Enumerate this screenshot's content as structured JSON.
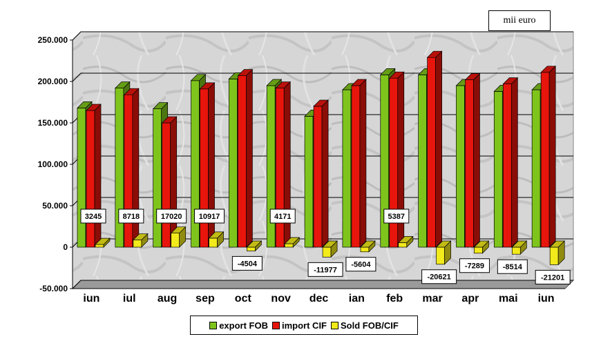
{
  "unit_label": "mii euro",
  "chart_data": {
    "type": "bar",
    "categories": [
      "iun",
      "iul",
      "aug",
      "sep",
      "oct",
      "nov",
      "dec",
      "ian",
      "feb",
      "mar",
      "apr",
      "mai",
      "iun"
    ],
    "series": [
      {
        "name": "export FOB",
        "color": "#7fc41c",
        "values": [
          168000,
          192000,
          167000,
          201000,
          203000,
          195000,
          158000,
          190000,
          208000,
          208000,
          195000,
          188000,
          190000
        ]
      },
      {
        "name": "import CIF",
        "color": "#e8150c",
        "values": [
          165000,
          184000,
          150000,
          191000,
          207000,
          192000,
          170000,
          195000,
          204000,
          229000,
          202000,
          197000,
          211000
        ]
      },
      {
        "name": "Sold FOB/CIF",
        "color": "#f2ea1a",
        "values": [
          3245,
          8718,
          17020,
          10917,
          -4504,
          4171,
          -11977,
          -5604,
          5387,
          -20621,
          -7289,
          -8514,
          -21201
        ]
      }
    ],
    "data_labels": [
      "3245",
      "8718",
      "17020",
      "10917",
      "-4504",
      "4171",
      "-11977",
      "-5604",
      "5387",
      "-20621",
      "-7289",
      "-8514",
      "-21201"
    ],
    "y_ticks": [
      "250.000",
      "200.000",
      "150.000",
      "100.000",
      "50.000",
      "0",
      "-50.000"
    ],
    "ylim": [
      -50000,
      250000
    ],
    "grid": true,
    "legend_position": "bottom"
  }
}
